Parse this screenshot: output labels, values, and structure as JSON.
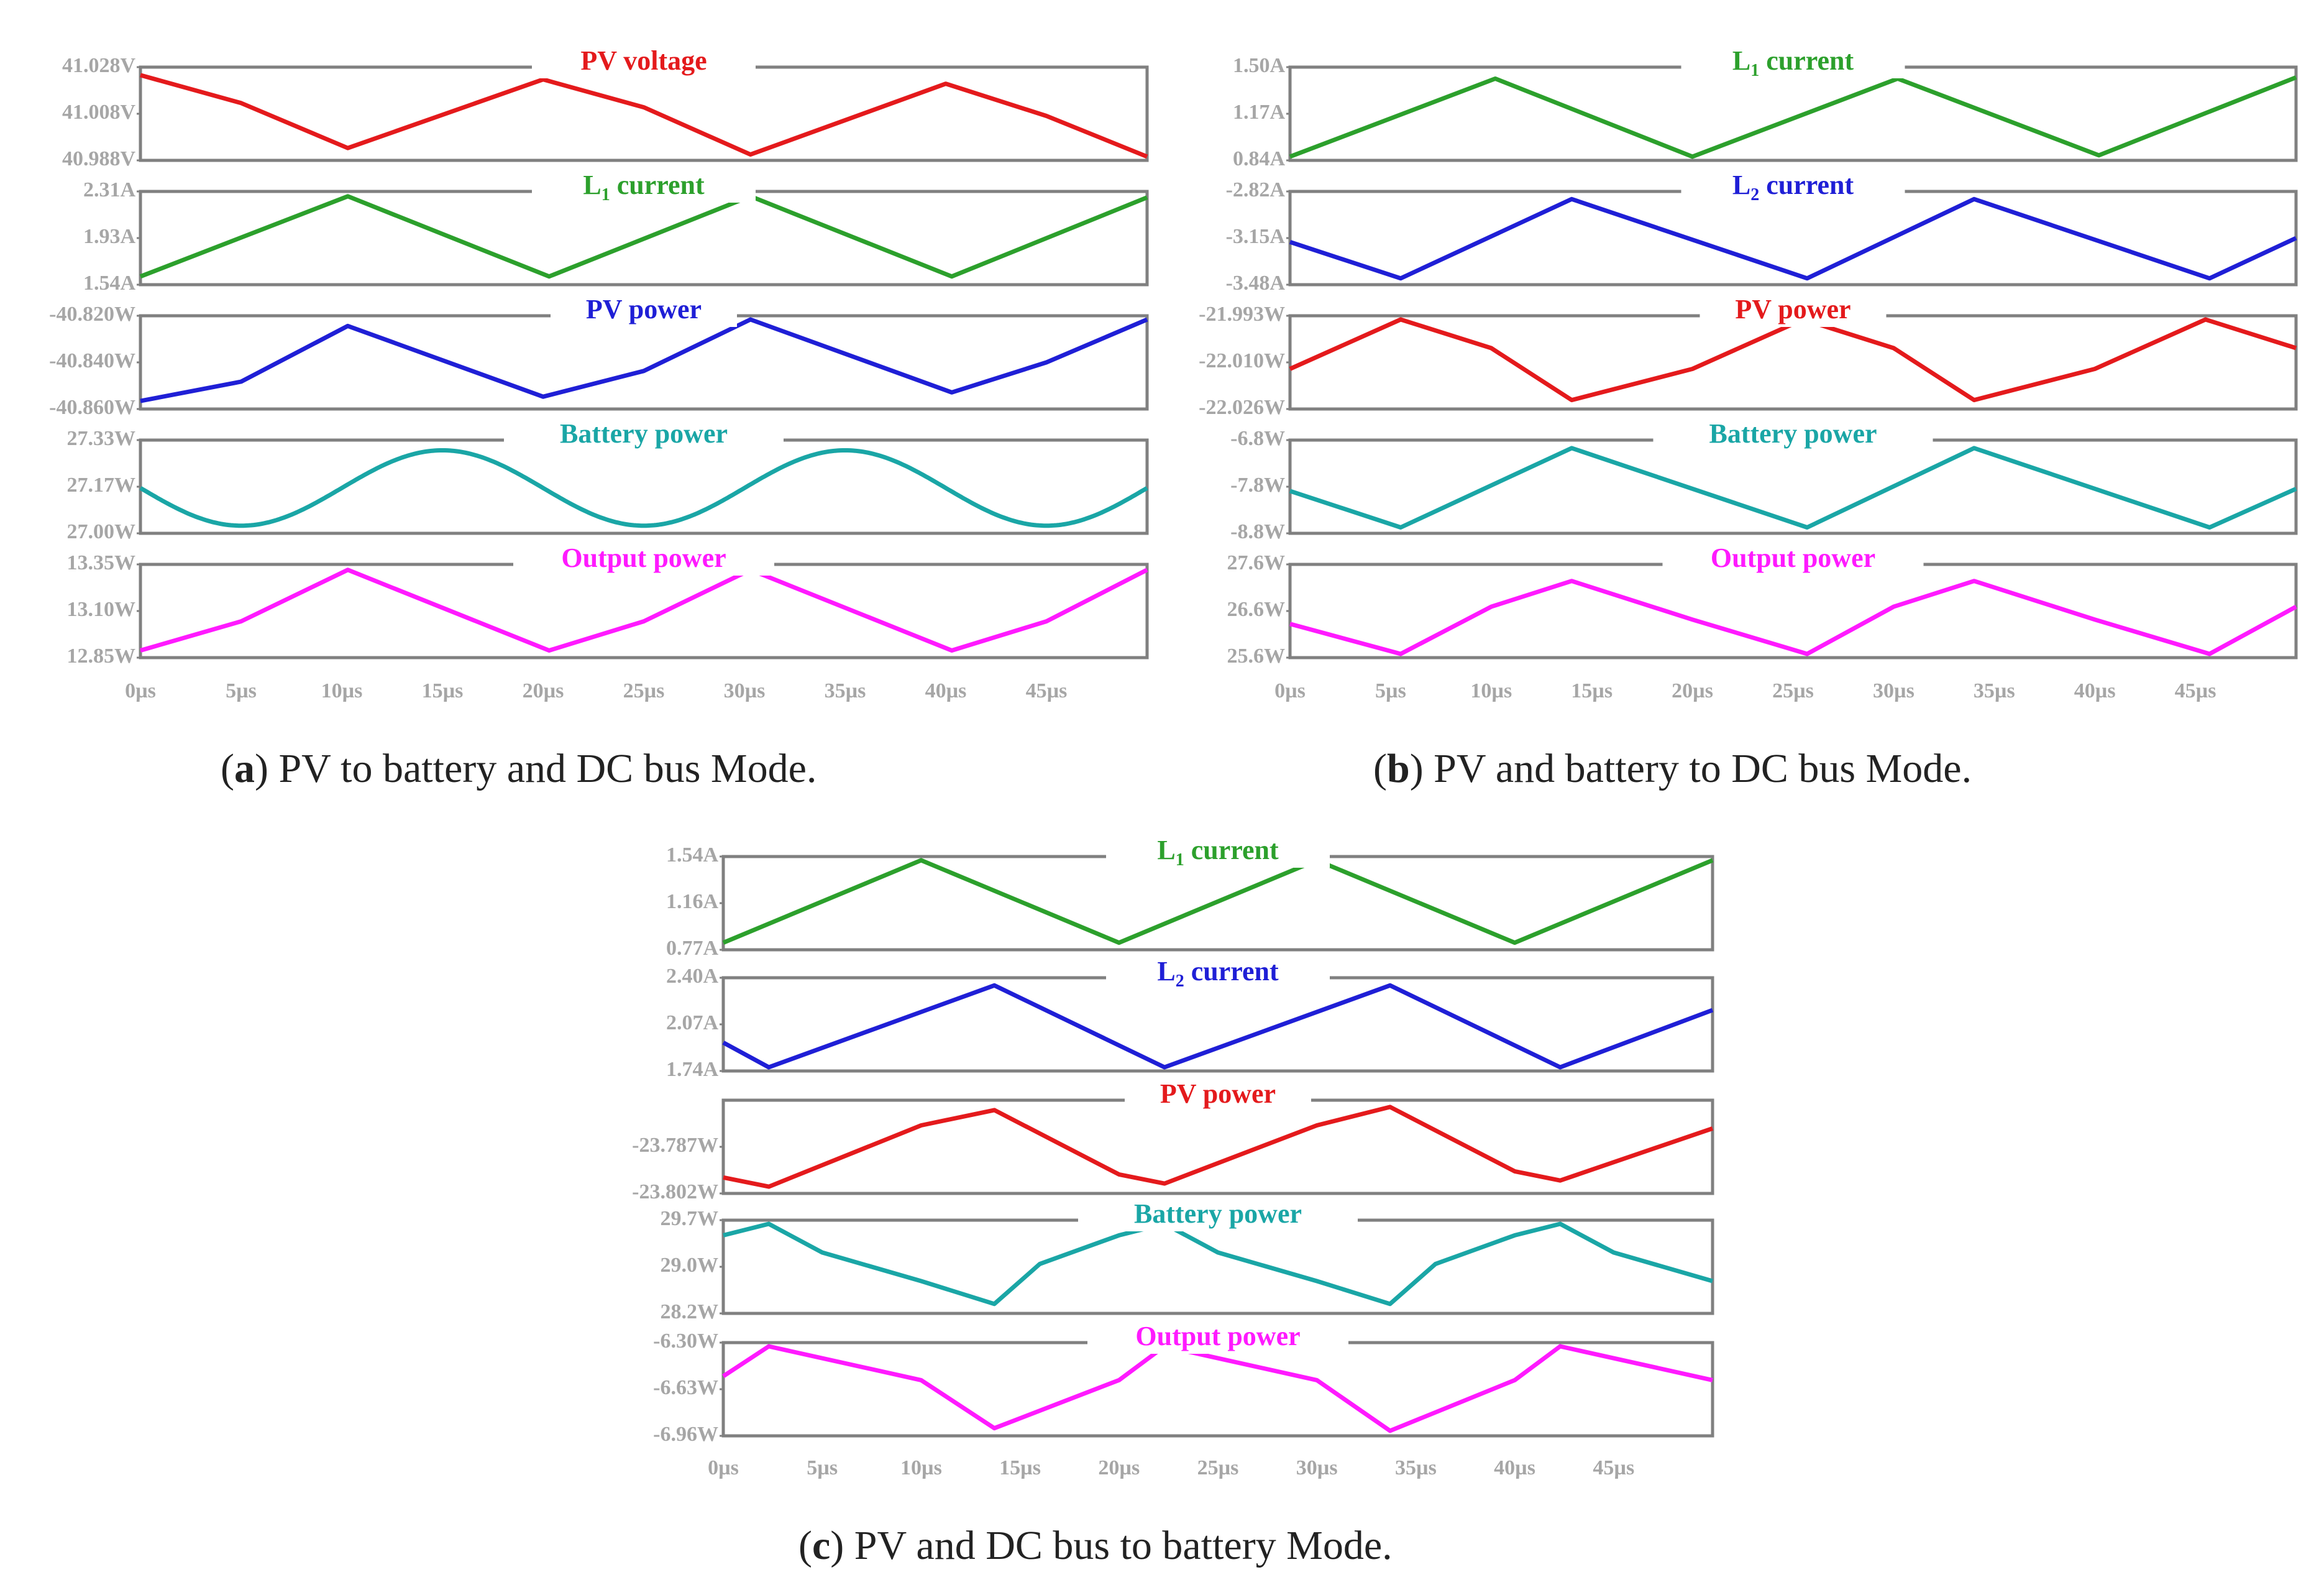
{
  "chart_data": [
    {
      "type": "line",
      "id": "a",
      "caption": {
        "label": "a",
        "text": ") PV to battery and DC bus Mode."
      },
      "x_unit": "µs",
      "x_range": [
        0,
        50
      ],
      "x_ticks": [
        "0µs",
        "5µs",
        "10µs",
        "15µs",
        "20µs",
        "25µs",
        "30µs",
        "35µs",
        "40µs",
        "45µs"
      ],
      "panels": [
        {
          "title": "PV voltage",
          "color": "#e41a1c",
          "ylim": [
            40.988,
            41.028
          ],
          "yticks": [
            "41.028V",
            "41.008V",
            "40.988V"
          ],
          "x": [
            0,
            5,
            10.3,
            20,
            25,
            30.3,
            40,
            45,
            50
          ],
          "y": [
            41.026,
            41.013,
            40.992,
            41.024,
            41.011,
            40.989,
            41.022,
            41.007,
            40.988
          ]
        },
        {
          "title": "L",
          "subscript": "1",
          "title_suffix": " current",
          "color": "#2ca02c",
          "ylim": [
            1.54,
            2.31
          ],
          "yticks": [
            "2.31A",
            "1.93A",
            "1.54A"
          ],
          "x": [
            0,
            10.3,
            20.3,
            30.3,
            40.3,
            50
          ],
          "y": [
            1.58,
            2.3,
            1.58,
            2.3,
            1.58,
            2.29
          ]
        },
        {
          "title": "PV power",
          "color": "#1f1fd6",
          "ylim": [
            -40.86,
            -40.82
          ],
          "yticks": [
            "-40.820W",
            "-40.840W",
            "-40.860W"
          ],
          "x": [
            0,
            5,
            10.3,
            20,
            25,
            30.3,
            40.3,
            45,
            50
          ],
          "y": [
            -40.858,
            -40.849,
            -40.823,
            -40.856,
            -40.844,
            -40.82,
            -40.854,
            -40.84,
            -40.82
          ]
        },
        {
          "title": "Battery power",
          "color": "#1aa6a6",
          "ylim": [
            27.0,
            27.33
          ],
          "yticks": [
            "27.33W",
            "27.17W",
            "27.00W"
          ],
          "wave": {
            "kind": "sine",
            "offset": 27.16,
            "amplitude": 0.145,
            "period": 20,
            "phase": 10
          }
        },
        {
          "title": "Output power",
          "color": "#ff1aff",
          "ylim": [
            12.85,
            13.35
          ],
          "yticks": [
            "13.35W",
            "13.10W",
            "12.85W"
          ],
          "x": [
            0,
            5,
            10.3,
            20.3,
            25,
            30.3,
            40.3,
            45,
            50
          ],
          "y": [
            12.87,
            13.04,
            13.34,
            12.87,
            13.04,
            13.34,
            12.87,
            13.04,
            13.34
          ]
        }
      ]
    },
    {
      "type": "line",
      "id": "b",
      "caption": {
        "label": "b",
        "text": ") PV and battery to DC bus Mode."
      },
      "x_unit": "µs",
      "x_range": [
        0,
        50
      ],
      "x_ticks": [
        "0µs",
        "5µs",
        "10µs",
        "15µs",
        "20µs",
        "25µs",
        "30µs",
        "35µs",
        "40µs",
        "45µs"
      ],
      "panels": [
        {
          "title": "L",
          "subscript": "1",
          "title_suffix": " current",
          "color": "#2ca02c",
          "ylim": [
            0.84,
            1.5
          ],
          "yticks": [
            "1.50A",
            "1.17A",
            "0.84A"
          ],
          "x": [
            0,
            10.2,
            20,
            30.2,
            40.2,
            50
          ],
          "y": [
            0.84,
            1.44,
            0.84,
            1.44,
            0.85,
            1.45
          ]
        },
        {
          "title": "L",
          "subscript": "2",
          "title_suffix": " current",
          "color": "#1f1fd6",
          "ylim": [
            -3.48,
            -2.82
          ],
          "yticks": [
            "-2.82A",
            "-3.15A",
            "-3.48A"
          ],
          "x": [
            0,
            5.5,
            14,
            25.7,
            34,
            45.7,
            50
          ],
          "y": [
            -3.18,
            -3.46,
            -2.85,
            -3.46,
            -2.85,
            -3.46,
            -3.15
          ]
        },
        {
          "title": "PV power",
          "color": "#e41a1c",
          "ylim": [
            -22.026,
            -21.993
          ],
          "yticks": [
            "-21.993W",
            "-22.010W",
            "-22.026W"
          ],
          "x": [
            0,
            5.5,
            10,
            14,
            20,
            25.5,
            30,
            34,
            40,
            45.5,
            50
          ],
          "y": [
            -22.012,
            -21.993,
            -22.004,
            -22.024,
            -22.012,
            -21.993,
            -22.004,
            -22.024,
            -22.012,
            -21.993,
            -22.004
          ]
        },
        {
          "title": "Battery power",
          "color": "#1aa6a6",
          "ylim": [
            -8.8,
            -6.8
          ],
          "yticks": [
            "-6.8W",
            "-7.8W",
            "-8.8W"
          ],
          "x": [
            0,
            5.5,
            14,
            25.7,
            34,
            45.7,
            50
          ],
          "y": [
            -7.9,
            -8.75,
            -6.9,
            -8.75,
            -6.9,
            -8.75,
            -7.85
          ]
        },
        {
          "title": "Output power",
          "color": "#ff1aff",
          "ylim": [
            25.6,
            27.6
          ],
          "yticks": [
            "27.6W",
            "26.6W",
            "25.6W"
          ],
          "x": [
            0,
            5.5,
            10,
            14,
            20,
            25.7,
            30,
            34,
            40,
            45.7,
            50
          ],
          "y": [
            26.3,
            25.6,
            26.7,
            27.3,
            26.4,
            25.6,
            26.7,
            27.3,
            26.4,
            25.6,
            26.7
          ]
        }
      ]
    },
    {
      "type": "line",
      "id": "c",
      "caption": {
        "label": "c",
        "text": ") PV and DC bus to battery Mode."
      },
      "x_unit": "µs",
      "x_range": [
        0,
        50
      ],
      "x_ticks": [
        "0µs",
        "5µs",
        "10µs",
        "15µs",
        "20µs",
        "25µs",
        "30µs",
        "35µs",
        "40µs",
        "45µs"
      ],
      "panels": [
        {
          "title": "L",
          "subscript": "1",
          "title_suffix": " current",
          "color": "#2ca02c",
          "ylim": [
            0.77,
            1.54
          ],
          "yticks": [
            "1.54A",
            "1.16A",
            "0.77A"
          ],
          "x": [
            0,
            10,
            20,
            30,
            40,
            50
          ],
          "y": [
            0.8,
            1.54,
            0.8,
            1.54,
            0.8,
            1.54
          ]
        },
        {
          "title": "L",
          "subscript": "2",
          "title_suffix": " current",
          "color": "#1f1fd6",
          "ylim": [
            1.74,
            2.4
          ],
          "yticks": [
            "2.40A",
            "2.07A",
            "1.74A"
          ],
          "x": [
            0,
            2.3,
            13.7,
            22.3,
            33.7,
            42.3,
            50
          ],
          "y": [
            1.93,
            1.74,
            2.37,
            1.74,
            2.37,
            1.74,
            2.18
          ]
        },
        {
          "title": "PV power",
          "color": "#e41a1c",
          "ylim": [
            -23.802,
            -23.774
          ],
          "yticks": [
            "",
            "-23.787W",
            "-23.802W"
          ],
          "x": [
            0,
            2.3,
            10,
            13.7,
            20,
            22.3,
            30,
            33.7,
            40,
            42.3,
            50
          ],
          "y": [
            -23.798,
            -23.801,
            -23.781,
            -23.776,
            -23.797,
            -23.8,
            -23.781,
            -23.775,
            -23.796,
            -23.799,
            -23.782
          ]
        },
        {
          "title": "Battery power",
          "color": "#1aa6a6",
          "ylim": [
            28.2,
            29.7
          ],
          "yticks": [
            "29.7W",
            "29.0W",
            "28.2W"
          ],
          "x": [
            0,
            2.3,
            5,
            10,
            13.7,
            16,
            20,
            22.3,
            25,
            30,
            33.7,
            36,
            40,
            42.3,
            45,
            50
          ],
          "y": [
            29.5,
            29.7,
            29.2,
            28.7,
            28.3,
            29.0,
            29.5,
            29.7,
            29.2,
            28.7,
            28.3,
            29.0,
            29.5,
            29.7,
            29.2,
            28.7
          ]
        },
        {
          "title": "Output power",
          "color": "#ff1aff",
          "ylim": [
            -6.96,
            -6.3
          ],
          "yticks": [
            "-6.30W",
            "-6.63W",
            "-6.96W"
          ],
          "x": [
            0,
            2.3,
            10,
            13.7,
            20,
            22.3,
            30,
            33.7,
            40,
            42.3,
            50
          ],
          "y": [
            -6.53,
            -6.3,
            -6.56,
            -6.93,
            -6.56,
            -6.3,
            -6.56,
            -6.95,
            -6.56,
            -6.3,
            -6.56
          ]
        }
      ]
    }
  ]
}
